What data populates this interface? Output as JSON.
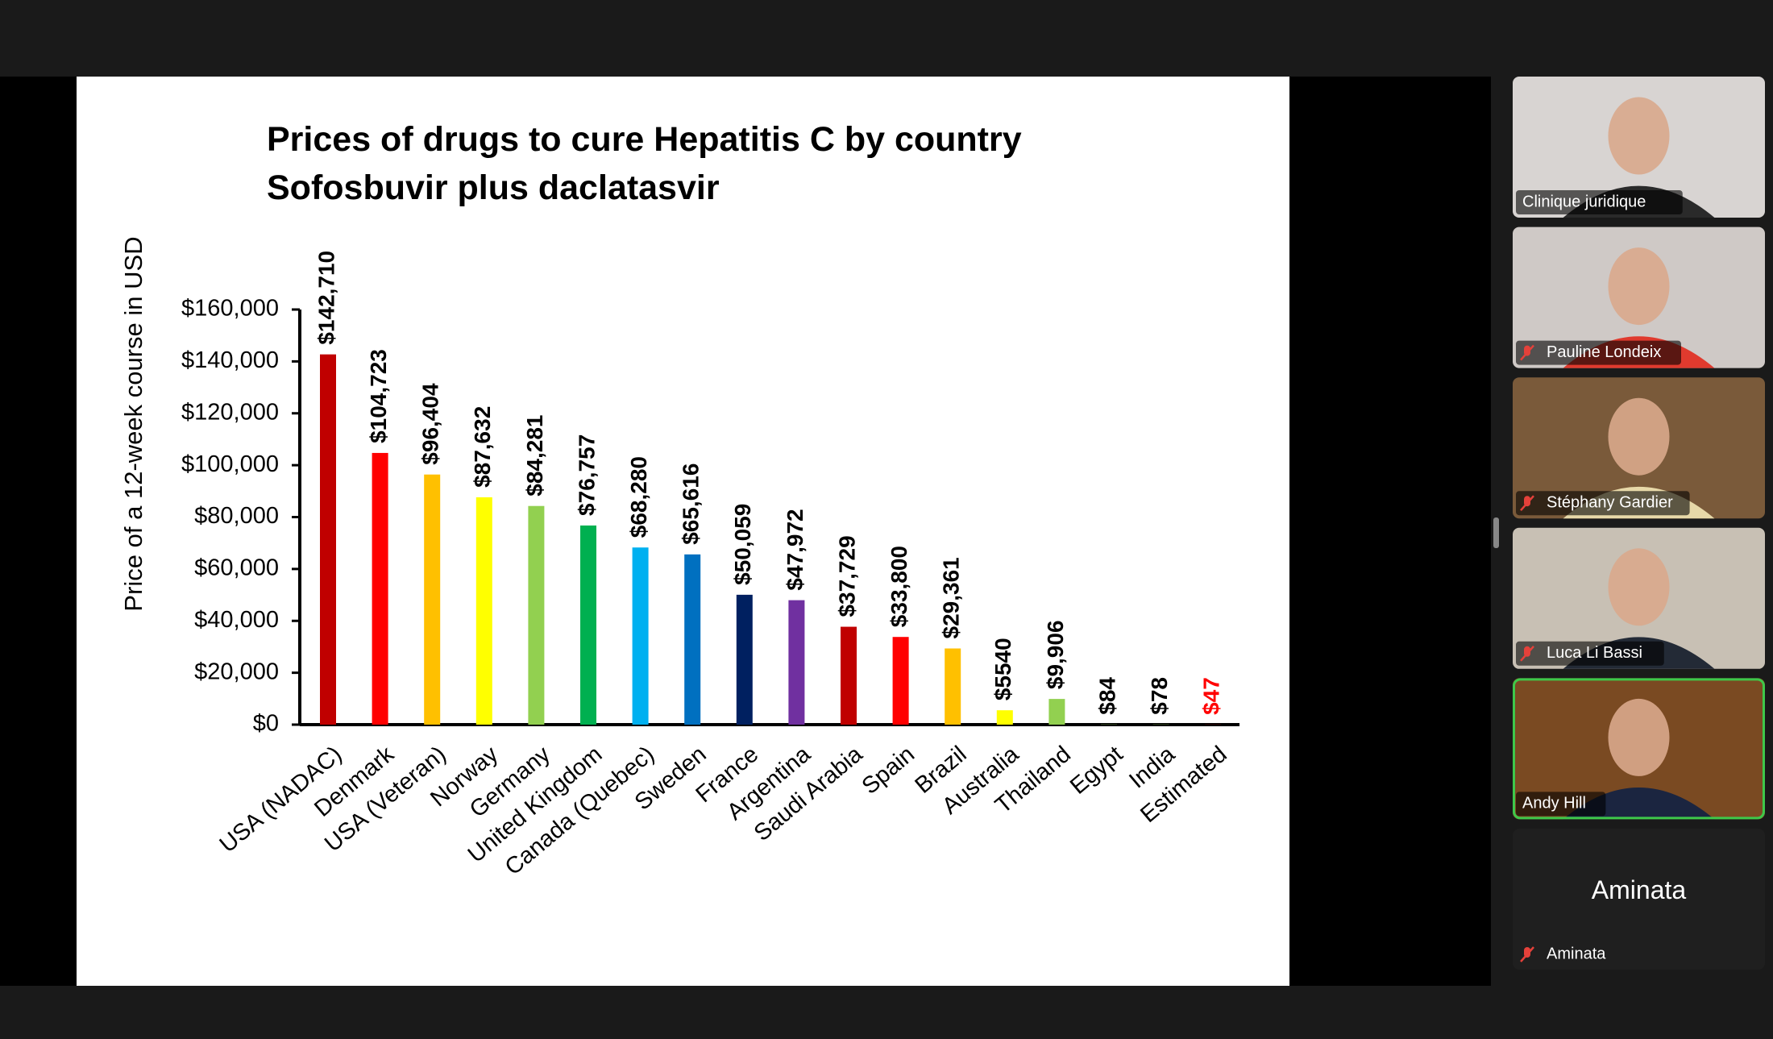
{
  "chart_data": {
    "type": "bar",
    "title": "Prices of drugs to cure Hepatitis C by country",
    "subtitle": "Sofosbuvir plus daclatasvir",
    "y_label": "Price of a 12-week course in USD",
    "categories": [
      "USA (NADAC)",
      "Denmark",
      "USA (Veteran)",
      "Norway",
      "Germany",
      "United Kingdom",
      "Canada (Quebec)",
      "Sweden",
      "France",
      "Argentina",
      "Saudi Arabia",
      "Spain",
      "Brazil",
      "Australia",
      "Thailand",
      "Egypt",
      "India",
      "Estimated"
    ],
    "values": [
      142710,
      104723,
      96404,
      87632,
      84281,
      76757,
      68280,
      65616,
      50059,
      47972,
      37729,
      33800,
      29361,
      5540,
      9906,
      84,
      78,
      47
    ],
    "value_labels": [
      "$142,710",
      "$104,723",
      "$96,404",
      "$87,632",
      "$84,281",
      "$76,757",
      "$68,280",
      "$65,616",
      "$50,059",
      "$47,972",
      "$37,729",
      "$33,800",
      "$29,361",
      "$5540",
      "$9,906",
      "$84",
      "$78",
      "$47"
    ],
    "colors": [
      "#c00000",
      "#ff0000",
      "#ffc000",
      "#ffff00",
      "#92d050",
      "#00b050",
      "#00b0f0",
      "#0070c0",
      "#002060",
      "#7030a0",
      "#c00000",
      "#ff0000",
      "#ffc000",
      "#ffff00",
      "#92d050",
      "#92d050",
      "#92d050",
      "#ff0000"
    ],
    "value_label_colors": [
      "#000000",
      "#000000",
      "#000000",
      "#000000",
      "#000000",
      "#000000",
      "#000000",
      "#000000",
      "#000000",
      "#000000",
      "#000000",
      "#000000",
      "#000000",
      "#000000",
      "#000000",
      "#000000",
      "#000000",
      "#ff0000"
    ],
    "ylim": [
      0,
      160000
    ],
    "yticks": [
      {
        "value": 0,
        "label": "$0"
      },
      {
        "value": 20000,
        "label": "$20,000"
      },
      {
        "value": 40000,
        "label": "$40,000"
      },
      {
        "value": 60000,
        "label": "$60,000"
      },
      {
        "value": 80000,
        "label": "$80,000"
      },
      {
        "value": 100000,
        "label": "$100,000"
      },
      {
        "value": 120000,
        "label": "$120,000"
      },
      {
        "value": 140000,
        "label": "$140,000"
      },
      {
        "value": 160000,
        "label": "$160,000"
      }
    ],
    "grid": false
  },
  "participants": [
    {
      "name": "Clinique juridique",
      "muted": false,
      "video": true
    },
    {
      "name": "Pauline Londeix",
      "muted": true,
      "video": true
    },
    {
      "name": "Stéphany Gardier",
      "muted": true,
      "video": true
    },
    {
      "name": "Luca Li Bassi",
      "muted": true,
      "video": true
    },
    {
      "name": "Andy Hill",
      "muted": false,
      "video": true,
      "active": true
    },
    {
      "name": "Aminata",
      "muted": true,
      "video": false
    }
  ]
}
